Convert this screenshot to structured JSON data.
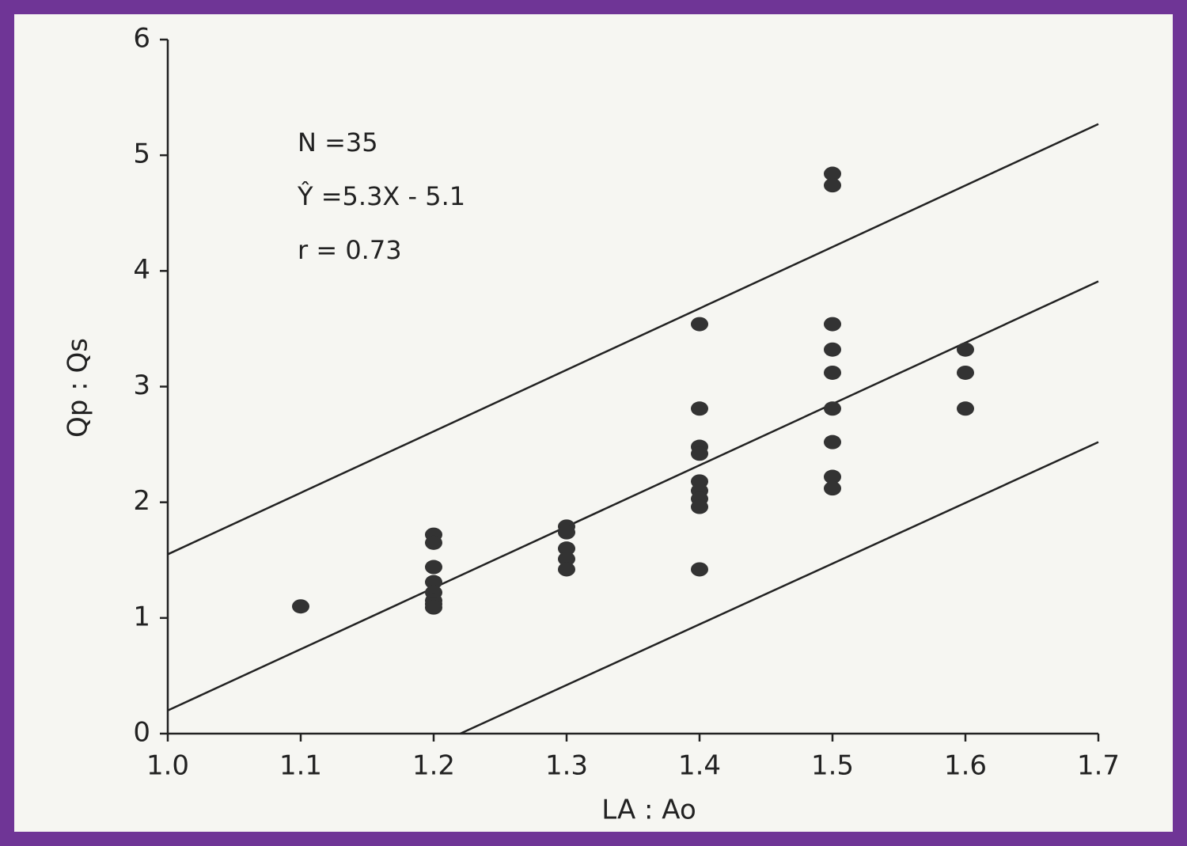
{
  "chart_data": {
    "type": "scatter",
    "x_label": "LA : Ao",
    "y_label": "Qp : Qs",
    "annotations": [
      "N =35",
      "Ŷ =5.3X - 5.1",
      "r = 0.73"
    ],
    "x": [
      1.1,
      1.2,
      1.2,
      1.2,
      1.2,
      1.2,
      1.2,
      1.2,
      1.2,
      1.3,
      1.3,
      1.3,
      1.3,
      1.3,
      1.4,
      1.4,
      1.4,
      1.4,
      1.4,
      1.4,
      1.4,
      1.4,
      1.4,
      1.5,
      1.5,
      1.5,
      1.5,
      1.5,
      1.5,
      1.5,
      1.5,
      1.5,
      1.6,
      1.6,
      1.6
    ],
    "y": [
      1.1,
      1.72,
      1.65,
      1.44,
      1.31,
      1.22,
      1.15,
      1.12,
      1.09,
      1.79,
      1.74,
      1.6,
      1.51,
      1.42,
      3.54,
      2.81,
      2.48,
      2.42,
      2.18,
      2.1,
      2.03,
      1.96,
      1.42,
      4.84,
      4.74,
      3.54,
      3.32,
      3.12,
      2.81,
      2.52,
      2.22,
      2.12,
      3.32,
      3.12,
      2.81
    ],
    "color": "#333333",
    "lines": [
      {
        "x": [
          1.0,
          1.7
        ],
        "y": [
          1.55,
          5.27
        ]
      },
      {
        "x": [
          1.0,
          1.7
        ],
        "y": [
          0.2,
          3.91
        ]
      },
      {
        "x": [
          1.22,
          1.7
        ],
        "y": [
          0,
          2.52
        ]
      }
    ],
    "xlim": [
      1.0,
      1.7
    ],
    "ylim": [
      0,
      6
    ],
    "xticks": [
      {
        "value": 1.0,
        "label": "1.0"
      },
      1.1,
      1.2,
      1.3,
      1.4,
      1.5,
      1.6,
      1.7
    ],
    "yticks": [
      0,
      1,
      2,
      3,
      4,
      5,
      6
    ]
  }
}
